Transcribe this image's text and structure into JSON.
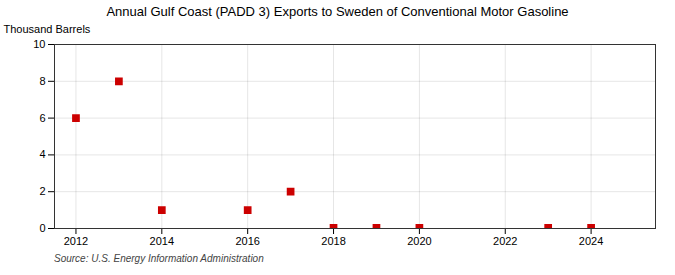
{
  "chart_data": {
    "type": "scatter",
    "title": "Annual Gulf Coast (PADD 3) Exports to Sweden of Conventional Motor Gasoline",
    "ylabel": "Thousand Barrels",
    "source": "Source: U.S. Energy Information Administration",
    "x": [
      2012,
      2013,
      2014,
      2016,
      2017,
      2018,
      2019,
      2020,
      2023,
      2024
    ],
    "values": [
      6,
      8,
      1,
      1,
      2,
      0.04,
      0.04,
      0.04,
      0.04,
      0.04
    ],
    "color": "#cc0000",
    "marker": "square",
    "xlim": [
      2011.5,
      2025.5
    ],
    "xticks": [
      2012,
      2014,
      2016,
      2018,
      2020,
      2022,
      2024
    ],
    "ylim": [
      0,
      10
    ],
    "yticks": [
      0,
      2,
      4,
      6,
      8,
      10
    ],
    "grid": true
  }
}
